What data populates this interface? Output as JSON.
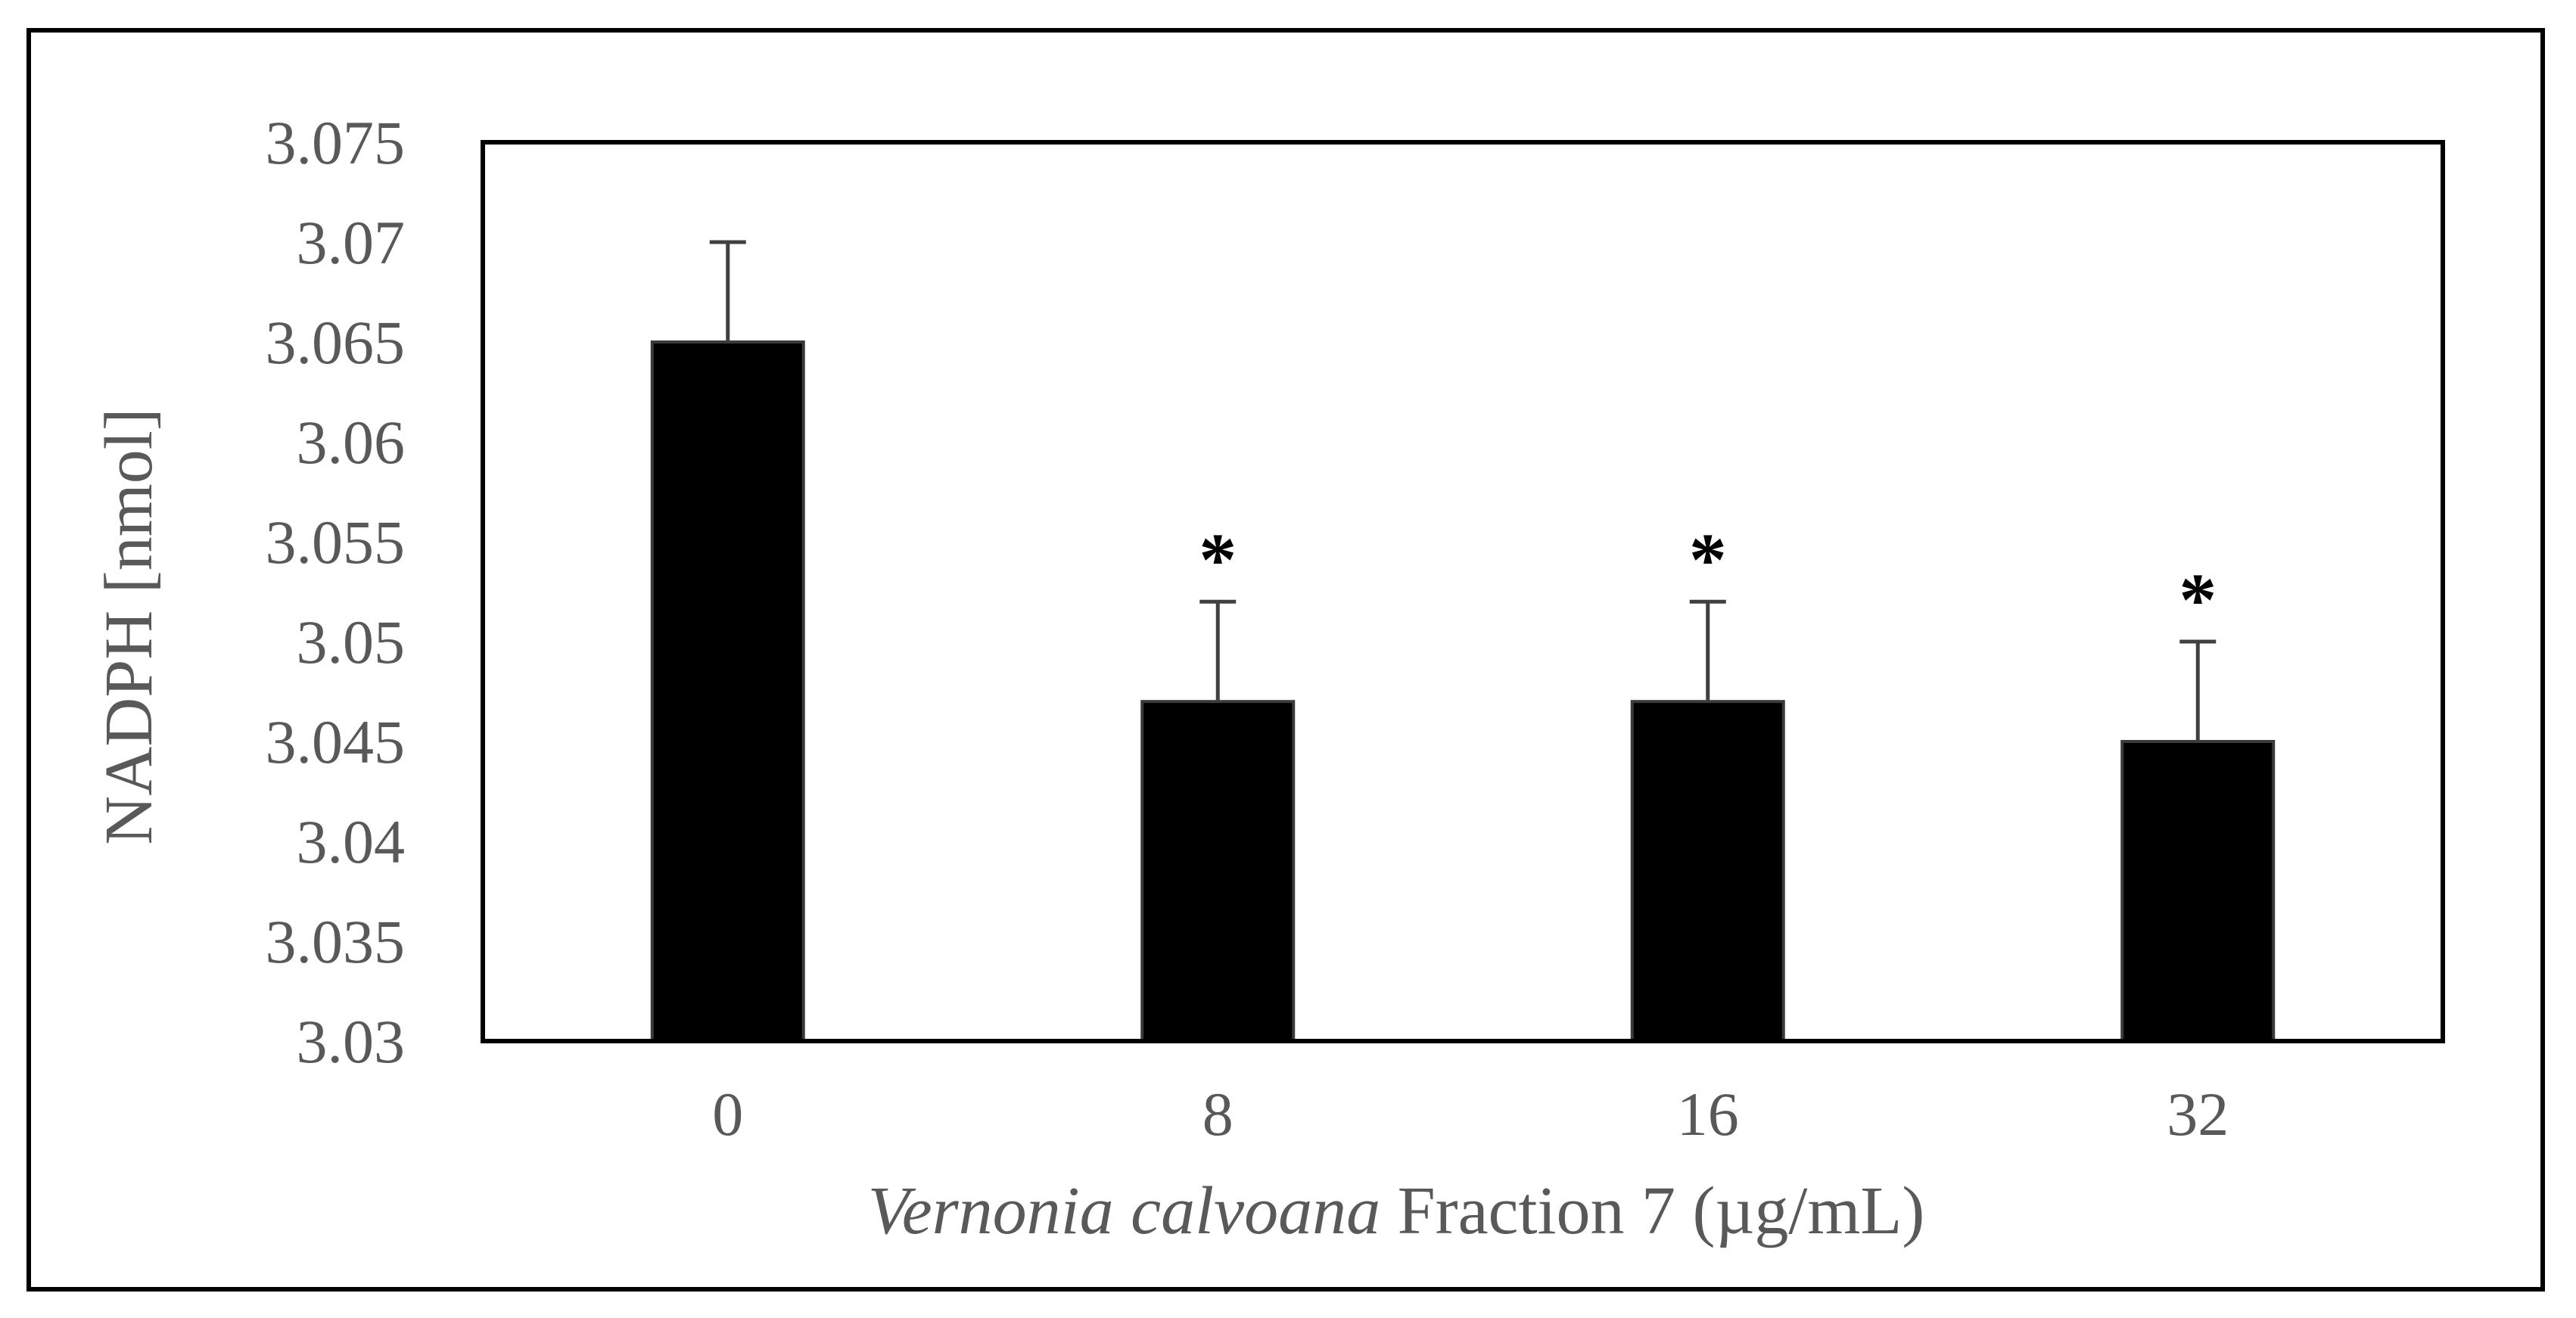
{
  "chart_data": {
    "type": "bar",
    "categories": [
      "0",
      "8",
      "16",
      "32"
    ],
    "values": [
      3.065,
      3.047,
      3.047,
      3.045
    ],
    "error_upper": [
      0.005,
      0.005,
      0.005,
      0.005
    ],
    "significance": [
      "",
      "*",
      "*",
      "*"
    ],
    "ylim": [
      3.03,
      3.075
    ],
    "yticks": [
      "3.03",
      "3.035",
      "3.04",
      "3.045",
      "3.05",
      "3.055",
      "3.06",
      "3.065",
      "3.07",
      "3.075"
    ],
    "ylabel": "NADPH [nmol]",
    "xlabel_italic": "Vernonia calvoana",
    "xlabel_rest": " Fraction 7 (µg/mL)",
    "title": "",
    "grid": false,
    "legend": "none",
    "bar_color": "#000000",
    "text_color": "#595959"
  }
}
